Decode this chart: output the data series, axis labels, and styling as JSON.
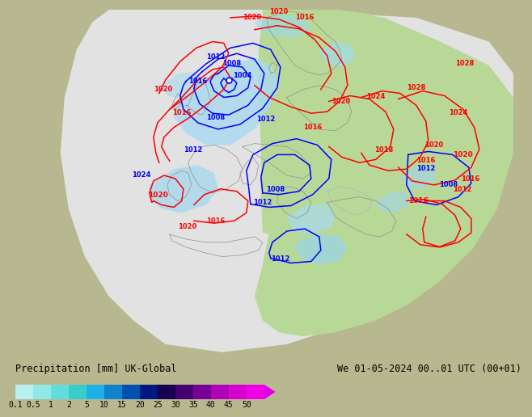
{
  "title_left": "Precipitation [mm] UK-Global",
  "title_right": "We 01-05-2024 00..01 UTC (00+01)",
  "colorbar_colors": [
    "#b8f0f0",
    "#90e8e8",
    "#60dede",
    "#38cccc",
    "#20b0e8",
    "#1480d0",
    "#0050b0",
    "#001880",
    "#180050",
    "#440070",
    "#780098",
    "#b000b8",
    "#d800d0",
    "#f000e8"
  ],
  "colorbar_labels": [
    "0.1",
    "0.5",
    "1",
    "2",
    "5",
    "10",
    "15",
    "20",
    "25",
    "30",
    "35",
    "40",
    "45",
    "50"
  ],
  "bg_color": "#b8b890",
  "land_color": "#b8b890",
  "sea_color": "#b8c8d0",
  "white_domain_color": "#e8e8e8",
  "green_precip_color": "#b8d898",
  "light_blue_precip": "#a8d8f0",
  "fig_width": 6.34,
  "fig_height": 4.9,
  "font_size_title": 8.5,
  "font_size_label": 7,
  "font_size_tick": 7
}
